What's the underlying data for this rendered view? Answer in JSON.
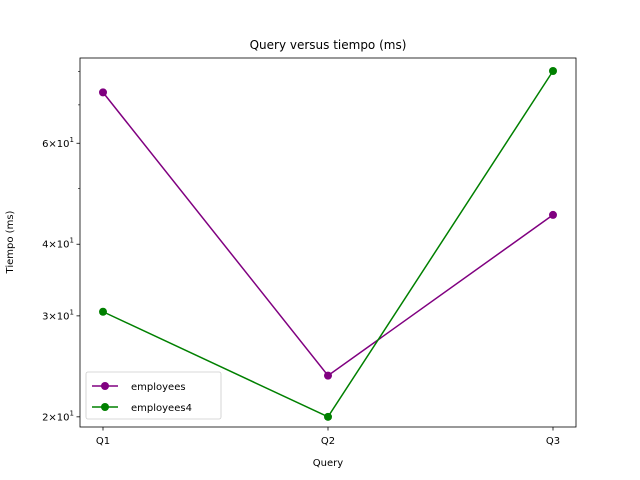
{
  "chart_data": {
    "type": "line",
    "title": "Query versus tiempo (ms)",
    "xlabel": "Query",
    "ylabel": "Tiempo (ms)",
    "yscale": "log",
    "ylim": [
      19.2,
      84.5
    ],
    "categories": [
      "Q1",
      "Q2",
      "Q3"
    ],
    "yticks": [
      {
        "value": 20,
        "base": "2",
        "exp": "1"
      },
      {
        "value": 30,
        "base": "3",
        "exp": "1"
      },
      {
        "value": 40,
        "base": "4",
        "exp": "1"
      },
      {
        "value": 60,
        "base": "6",
        "exp": "1"
      }
    ],
    "series": [
      {
        "name": "employees",
        "color": "#800080",
        "values": [
          73.6,
          23.6,
          45.0
        ]
      },
      {
        "name": "employees4",
        "color": "#008000",
        "values": [
          30.5,
          20.0,
          80.2
        ]
      }
    ],
    "legend": {
      "position": "lower-left"
    }
  }
}
